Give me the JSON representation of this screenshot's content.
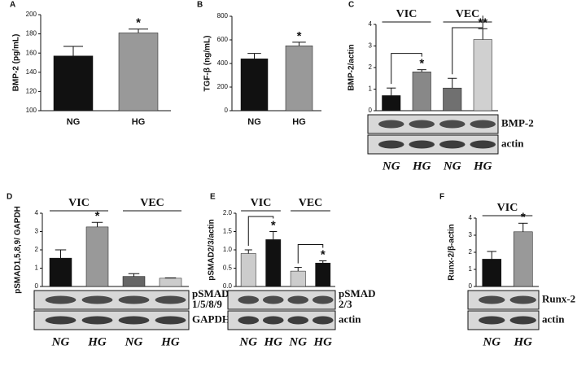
{
  "chart_data": [
    {
      "type": "bar",
      "label": "A",
      "y_label": "BMP-2 (pg/mL)",
      "categories": [
        "NG",
        "HG"
      ],
      "values": [
        157,
        181
      ],
      "errors": [
        10,
        4
      ],
      "colors": [
        "#111111",
        "#999999"
      ],
      "annotations": [
        null,
        "*"
      ],
      "ylim": [
        100,
        200
      ],
      "yticks": [
        100,
        120,
        140,
        160,
        180,
        200
      ]
    },
    {
      "type": "bar",
      "label": "B",
      "y_label": "TGF-β (ng/mL)",
      "categories": [
        "NG",
        "HG"
      ],
      "values": [
        440,
        550
      ],
      "errors": [
        45,
        30
      ],
      "colors": [
        "#111111",
        "#999999"
      ],
      "annotations": [
        null,
        "*"
      ],
      "ylim": [
        0,
        800
      ],
      "yticks": [
        0,
        200,
        400,
        600,
        800
      ]
    },
    {
      "type": "bar",
      "label": "C",
      "y_label": "BMP-2/actin",
      "groups": [
        "VIC",
        "VEC"
      ],
      "brackets": true,
      "categories": [
        "NG",
        "HG",
        "NG",
        "HG"
      ],
      "values": [
        0.7,
        1.8,
        1.05,
        3.3
      ],
      "errors": [
        0.35,
        0.1,
        0.45,
        0.5
      ],
      "colors": [
        "#111111",
        "#888888",
        "#707070",
        "#d0d0d0"
      ],
      "annotations": [
        null,
        "*",
        null,
        "**"
      ],
      "ylim": [
        0,
        4
      ],
      "yticks": [
        0,
        1,
        2,
        3,
        4
      ],
      "blot_labels": [
        [
          "BMP-2"
        ],
        [
          "actin"
        ]
      ]
    },
    {
      "type": "bar",
      "label": "D",
      "y_label": "pSMAD1,5,8,9/ GAPDH",
      "groups": [
        "VIC",
        "VEC"
      ],
      "brackets": false,
      "categories": [
        "NG",
        "HG",
        "NG",
        "HG"
      ],
      "values": [
        1.55,
        3.25,
        0.55,
        0.45
      ],
      "errors": [
        0.45,
        0.25,
        0.15,
        0.02
      ],
      "colors": [
        "#111111",
        "#999999",
        "#666666",
        "#cccccc"
      ],
      "annotations": [
        null,
        "*",
        null,
        null
      ],
      "ylim": [
        0,
        4
      ],
      "yticks": [
        0,
        1,
        2,
        3,
        4
      ],
      "blot_labels": [
        [
          "pSMAD",
          "1/5/8/9"
        ],
        [
          "GAPDH"
        ]
      ]
    },
    {
      "type": "bar",
      "label": "E",
      "y_label": "pSMAD2/3/actin",
      "groups": [
        "VIC",
        "VEC"
      ],
      "brackets": true,
      "categories": [
        "NG",
        "HG",
        "NG",
        "HG"
      ],
      "values": [
        0.9,
        1.28,
        0.42,
        0.64
      ],
      "errors": [
        0.1,
        0.22,
        0.1,
        0.06
      ],
      "colors": [
        "#cccccc",
        "#111111",
        "#cccccc",
        "#111111"
      ],
      "annotations": [
        null,
        "*",
        null,
        "*"
      ],
      "ylim": [
        0,
        2
      ],
      "yticks": [
        {
          "value": 0,
          "label": "0.0"
        },
        0.5,
        {
          "value": 1,
          "label": "1.0"
        },
        1.5,
        {
          "value": 2,
          "label": "2.0"
        }
      ],
      "blot_labels": [
        [
          "pSMAD",
          "2/3"
        ],
        [
          "actin"
        ]
      ]
    },
    {
      "type": "bar",
      "label": "F",
      "y_label": "Runx-2/β-actin",
      "groups": [
        "VIC"
      ],
      "brackets": false,
      "categories": [
        "NG",
        "HG"
      ],
      "values": [
        1.6,
        3.2
      ],
      "errors": [
        0.45,
        0.5
      ],
      "colors": [
        "#111111",
        "#999999"
      ],
      "annotations": [
        null,
        "*"
      ],
      "ylim": [
        0,
        4
      ],
      "yticks": [
        0,
        1,
        2,
        3,
        4
      ],
      "blot_labels": [
        [
          "Runx-2"
        ],
        [
          "actin"
        ]
      ]
    }
  ]
}
